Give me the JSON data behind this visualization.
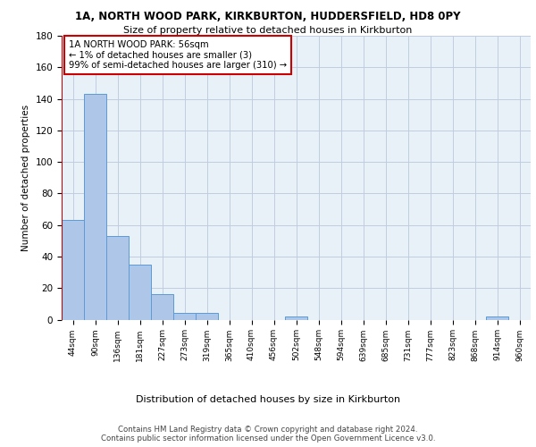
{
  "title1": "1A, NORTH WOOD PARK, KIRKBURTON, HUDDERSFIELD, HD8 0PY",
  "title2": "Size of property relative to detached houses in Kirkburton",
  "xlabel": "Distribution of detached houses by size in Kirkburton",
  "ylabel": "Number of detached properties",
  "categories": [
    "44sqm",
    "90sqm",
    "136sqm",
    "181sqm",
    "227sqm",
    "273sqm",
    "319sqm",
    "365sqm",
    "410sqm",
    "456sqm",
    "502sqm",
    "548sqm",
    "594sqm",
    "639sqm",
    "685sqm",
    "731sqm",
    "777sqm",
    "823sqm",
    "868sqm",
    "914sqm",
    "960sqm"
  ],
  "values": [
    63,
    143,
    53,
    35,
    16,
    4,
    4,
    0,
    0,
    0,
    2,
    0,
    0,
    0,
    0,
    0,
    0,
    0,
    0,
    2,
    0
  ],
  "bar_color": "#aec6e8",
  "bar_edge_color": "#5b9bd5",
  "highlight_color": "#cc0000",
  "annotation_text": "1A NORTH WOOD PARK: 56sqm\n← 1% of detached houses are smaller (3)\n99% of semi-detached houses are larger (310) →",
  "annotation_box_color": "#ffffff",
  "annotation_box_edge": "#cc0000",
  "ylim": [
    0,
    180
  ],
  "yticks": [
    0,
    20,
    40,
    60,
    80,
    100,
    120,
    140,
    160,
    180
  ],
  "bg_color": "#e8f0f8",
  "footer": "Contains HM Land Registry data © Crown copyright and database right 2024.\nContains public sector information licensed under the Open Government Licence v3.0."
}
